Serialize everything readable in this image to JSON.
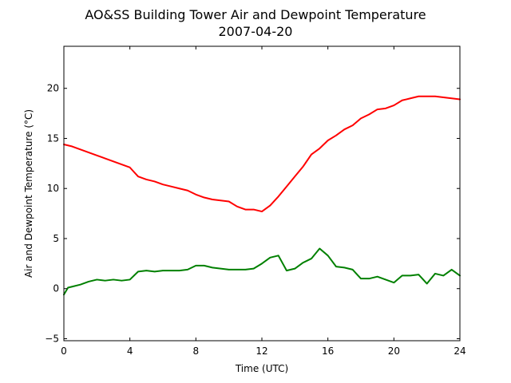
{
  "chart_data": {
    "type": "line",
    "title": "AO&SS Building Tower Air and Dewpoint Temperature",
    "subtitle": "2007-04-20",
    "xlabel": "Time (UTC)",
    "ylabel": "Air and Dewpoint Temperature (°C)",
    "xlim": [
      0,
      24
    ],
    "ylim": [
      -5.2,
      24.2
    ],
    "x_ticks": [
      0,
      4,
      8,
      12,
      16,
      20,
      24
    ],
    "y_ticks": [
      -5,
      0,
      5,
      10,
      15,
      20
    ],
    "grid": false,
    "legend": "none",
    "series": [
      {
        "color": "#ff0000",
        "x": [
          0,
          0.5,
          1,
          1.5,
          2,
          2.5,
          3,
          3.5,
          4,
          4.5,
          5,
          5.5,
          6,
          6.5,
          7,
          7.5,
          8,
          8.5,
          9,
          9.5,
          10,
          10.5,
          11,
          11.5,
          12,
          12.5,
          13,
          13.5,
          14,
          14.5,
          15,
          15.5,
          16,
          16.5,
          17,
          17.5,
          18,
          18.5,
          19,
          19.5,
          20,
          20.5,
          21,
          21.5,
          22,
          22.5,
          23,
          23.5,
          24
        ],
        "values": [
          14.4,
          14.2,
          13.9,
          13.6,
          13.3,
          13.0,
          12.7,
          12.4,
          12.1,
          11.2,
          10.9,
          10.7,
          10.4,
          10.2,
          10.0,
          9.8,
          9.4,
          9.1,
          8.9,
          8.8,
          8.7,
          8.2,
          7.9,
          7.9,
          7.7,
          8.3,
          9.2,
          10.2,
          11.2,
          12.2,
          13.4,
          14.0,
          14.8,
          15.3,
          15.9,
          16.3,
          17.0,
          17.4,
          17.9,
          18.0,
          18.3,
          18.8,
          19.0,
          19.2,
          19.2,
          19.2,
          19.1,
          19.0,
          18.9
        ]
      },
      {
        "color": "#008000",
        "x": [
          0,
          0.25,
          0.5,
          1,
          1.5,
          2,
          2.5,
          3,
          3.5,
          4,
          4.5,
          5,
          5.5,
          6,
          6.5,
          7,
          7.5,
          8,
          8.5,
          9,
          9.5,
          10,
          10.5,
          11,
          11.5,
          12,
          12.5,
          13,
          13.5,
          14,
          14.5,
          15,
          15.5,
          16,
          16.5,
          17,
          17.5,
          18,
          18.5,
          19,
          19.5,
          20,
          20.5,
          21,
          21.5,
          22,
          22.5,
          23,
          23.5,
          24
        ],
        "values": [
          -0.6,
          0.1,
          0.2,
          0.4,
          0.7,
          0.9,
          0.8,
          0.9,
          0.8,
          0.9,
          1.7,
          1.8,
          1.7,
          1.8,
          1.8,
          1.8,
          1.9,
          2.3,
          2.3,
          2.1,
          2.0,
          1.9,
          1.9,
          1.9,
          2.0,
          2.5,
          3.1,
          3.3,
          1.8,
          2.0,
          2.6,
          3.0,
          4.0,
          3.3,
          2.2,
          2.1,
          1.9,
          1.0,
          1.0,
          1.2,
          0.9,
          0.6,
          1.3,
          1.3,
          1.4,
          0.5,
          1.5,
          1.3,
          1.9,
          1.3
        ]
      }
    ]
  }
}
